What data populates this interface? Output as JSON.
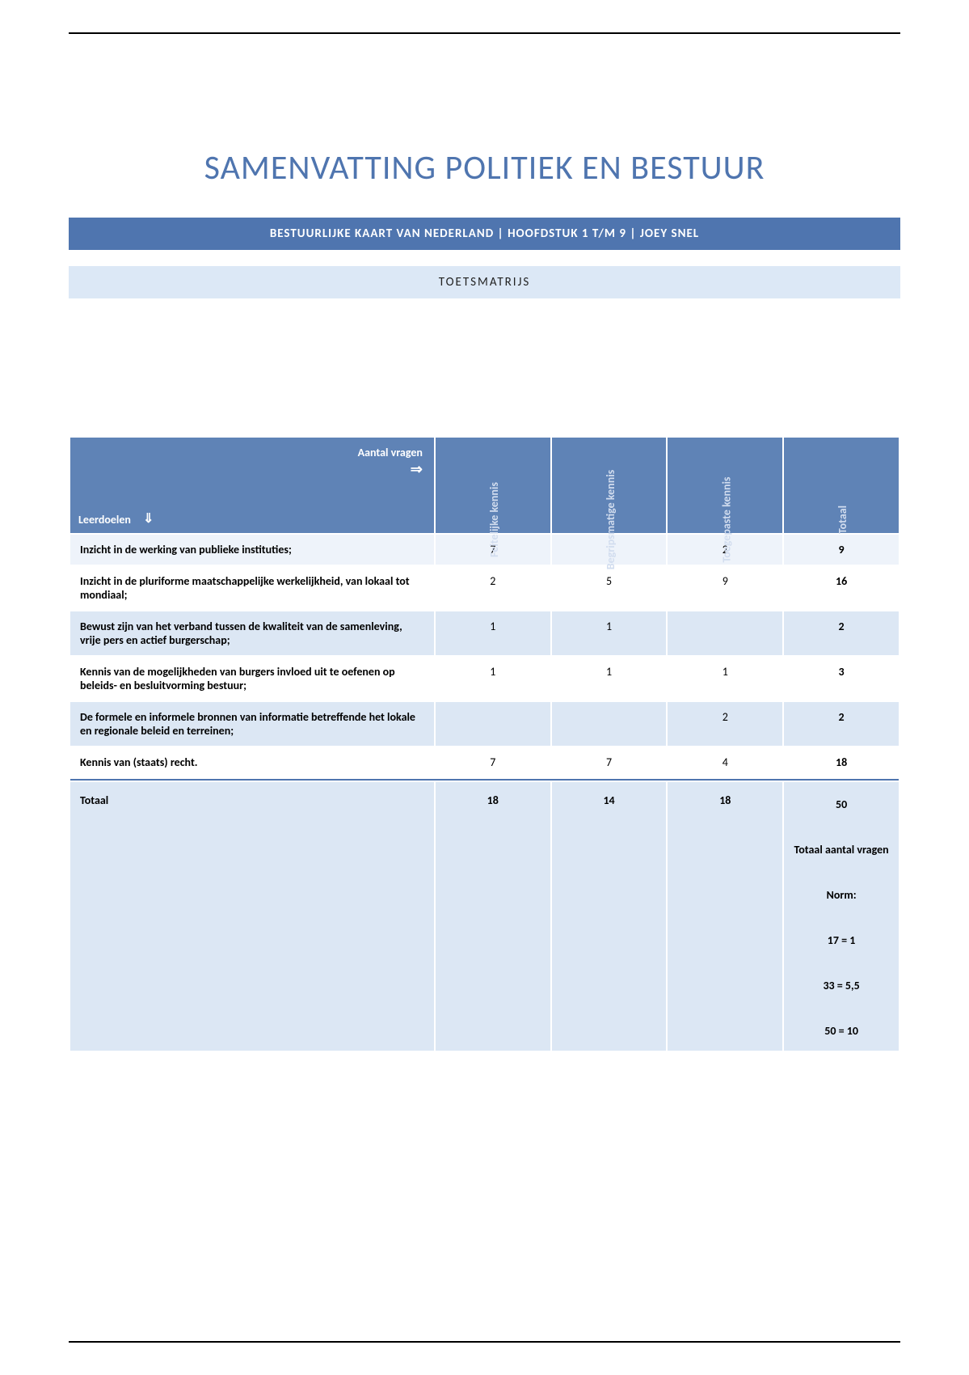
{
  "title": "SAMENVATTING POLITIEK EN BESTUUR",
  "subtitle": "BESTUURLIJKE KAART VAN NEDERLAND | HOOFDSTUK 1 T/M 9 | JOEY SNEL",
  "section_header": "TOETSMATRIJS",
  "colors": {
    "accent": "#4f75af",
    "header_bg": "#5f83b6",
    "header_fg": "#ffffff",
    "header_dim": "#d2ddef",
    "row_light": "#eef3fa",
    "row_dark": "#dce7f4",
    "page_bg": "#ffffff",
    "text": "#000000"
  },
  "matrix": {
    "corner": {
      "aantal_label": "Aantal vragen",
      "leerdoelen_label": "Leerdoelen",
      "arrow_right": "⇒",
      "arrow_down": "⇓"
    },
    "columns": [
      "Feitelijke kennis",
      "Begripsmatige kennis",
      "Toegepaste kennis",
      "Totaal"
    ],
    "rows": [
      {
        "shade": "light",
        "label": "Inzicht in de werking van publieke instituties;",
        "cells": [
          "7",
          "",
          "2"
        ],
        "total": "9"
      },
      {
        "shade": "blank",
        "label": "Inzicht in de pluriforme maatschappelijke werkelijkheid, van lokaal tot mondiaal;",
        "cells": [
          "2",
          "5",
          "9"
        ],
        "total": "16"
      },
      {
        "shade": "dark",
        "label": "Bewust zijn van het verband tussen de kwaliteit van de samenleving, vrije pers en actief burgerschap;",
        "cells": [
          "1",
          "1",
          ""
        ],
        "total": "2"
      },
      {
        "shade": "blank",
        "label": "Kennis van de mogelijkheden van burgers invloed uit te oefenen op beleids- en besluitvorming bestuur;",
        "cells": [
          "1",
          "1",
          "1"
        ],
        "total": "3"
      },
      {
        "shade": "dark",
        "label": "De formele en informele bronnen van informatie betreffende het lokale en regionale beleid en terreinen;",
        "cells": [
          "",
          "",
          "2"
        ],
        "total": "2"
      },
      {
        "shade": "blank",
        "label": "Kennis van (staats) recht.",
        "cells": [
          "7",
          "7",
          "4"
        ],
        "total": "18"
      }
    ],
    "footer": {
      "label": "Totaal",
      "cells": [
        "18",
        "14",
        "18"
      ],
      "total": "50",
      "extra_lines": [
        "Totaal aantal vragen",
        "Norm:",
        "17 = 1",
        "33 = 5,5",
        "50 = 10"
      ]
    }
  }
}
